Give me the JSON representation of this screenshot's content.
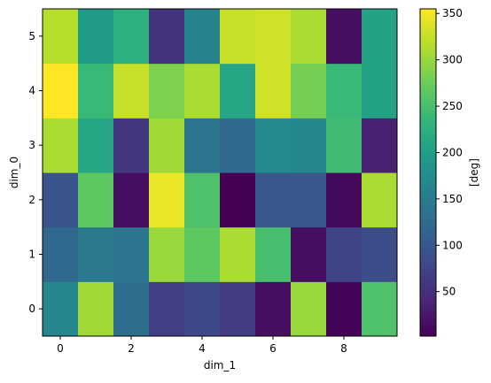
{
  "chart_data": {
    "type": "heatmap",
    "xlabel": "dim_1",
    "ylabel": "dim_0",
    "colorbar_label": "[deg]",
    "colormap": "viridis",
    "x": [
      0,
      1,
      2,
      3,
      4,
      5,
      6,
      7,
      8,
      9
    ],
    "y": [
      0,
      1,
      2,
      3,
      4,
      5
    ],
    "xticks": [
      "0",
      "2",
      "4",
      "6",
      "8"
    ],
    "yticks": [
      "0",
      "1",
      "2",
      "3",
      "4",
      "5"
    ],
    "clim": [
      2,
      355
    ],
    "colorbar_ticks": [
      "50",
      "100",
      "150",
      "200",
      "250",
      "300",
      "350"
    ],
    "values": [
      [
        165,
        305,
        130,
        70,
        80,
        65,
        15,
        300,
        5,
        255
      ],
      [
        120,
        145,
        140,
        300,
        265,
        310,
        250,
        15,
        75,
        85
      ],
      [
        95,
        265,
        15,
        345,
        255,
        2,
        100,
        100,
        10,
        310
      ],
      [
        310,
        210,
        60,
        305,
        140,
        120,
        170,
        165,
        245,
        35
      ],
      [
        355,
        240,
        325,
        285,
        310,
        210,
        330,
        280,
        240,
        205
      ],
      [
        315,
        195,
        225,
        55,
        160,
        325,
        330,
        310,
        15,
        205
      ]
    ]
  }
}
